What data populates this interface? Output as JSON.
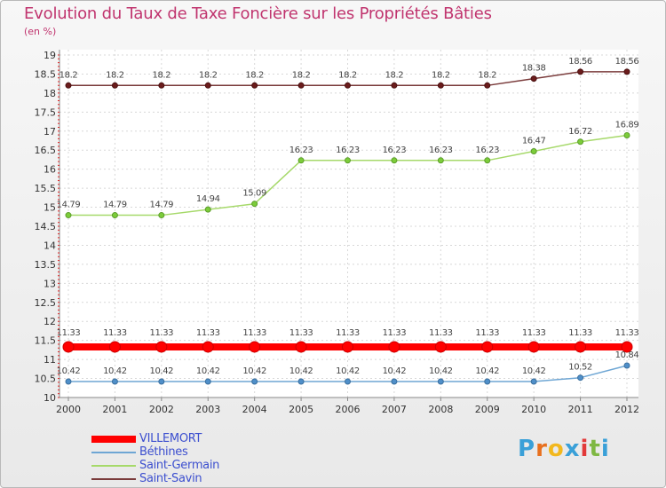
{
  "title": "Evolution du Taux de Taxe Foncière sur les Propriétés Bâties",
  "subtitle": "(en %)",
  "logo": {
    "letters": [
      "P",
      "r",
      "o",
      "x",
      "i",
      "t",
      "i"
    ],
    "colors": [
      "#3aa0d8",
      "#e8701e",
      "#f2b81e",
      "#3aa0d8",
      "#e23a3a",
      "#7fb843",
      "#3aa0d8"
    ]
  },
  "chart_data": {
    "type": "line",
    "title": "Evolution du Taux de Taxe Foncière sur les Propriétés Bâties",
    "ylabel": "(en %)",
    "xlabel": "",
    "x": [
      "2000",
      "2001",
      "2002",
      "2003",
      "2004",
      "2005",
      "2006",
      "2007",
      "2008",
      "2009",
      "2010",
      "2011",
      "2012"
    ],
    "ylim": [
      10,
      19
    ],
    "yticks": [
      "10",
      "10.5",
      "11",
      "11.5",
      "12",
      "12.5",
      "13",
      "13.5",
      "14",
      "14.5",
      "15",
      "15.5",
      "16",
      "16.5",
      "17",
      "17.5",
      "18",
      "18.5",
      "19"
    ],
    "legend_position": "bottom-left",
    "series": [
      {
        "name": "VILLEMORT",
        "color": "#ff0000",
        "values": [
          11.33,
          11.33,
          11.33,
          11.33,
          11.33,
          11.33,
          11.33,
          11.33,
          11.33,
          11.33,
          11.33,
          11.33,
          11.33
        ],
        "labels": [
          "11.33",
          "11.33",
          "11.33",
          "11.33",
          "11.33",
          "11.33",
          "11.33",
          "11.33",
          "11.33",
          "11.33",
          "11.33",
          "11.33",
          "11.33"
        ]
      },
      {
        "name": "Béthines",
        "color": "#6ea6d4",
        "values": [
          10.42,
          10.42,
          10.42,
          10.42,
          10.42,
          10.42,
          10.42,
          10.42,
          10.42,
          10.42,
          10.42,
          10.52,
          10.84
        ],
        "labels": [
          "10.42",
          "10.42",
          "10.42",
          "10.42",
          "10.42",
          "10.42",
          "10.42",
          "10.42",
          "10.42",
          "10.42",
          "10.42",
          "10.52",
          "10.84"
        ]
      },
      {
        "name": "Saint-Germain",
        "color": "#a6d96a",
        "values": [
          14.79,
          14.79,
          14.79,
          14.94,
          15.09,
          16.23,
          16.23,
          16.23,
          16.23,
          16.23,
          16.47,
          16.72,
          16.89
        ],
        "labels": [
          "14.79",
          "14.79",
          "14.79",
          "14.94",
          "15.09",
          "16.23",
          "16.23",
          "16.23",
          "16.23",
          "16.23",
          "16.47",
          "16.72",
          "16.89"
        ]
      },
      {
        "name": "Saint-Savin",
        "color": "#7a3b3b",
        "values": [
          18.2,
          18.2,
          18.2,
          18.2,
          18.2,
          18.2,
          18.2,
          18.2,
          18.2,
          18.2,
          18.38,
          18.56,
          18.56
        ],
        "labels": [
          "18.2",
          "18.2",
          "18.2",
          "18.2",
          "18.2",
          "18.2",
          "18.2",
          "18.2",
          "18.2",
          "18.2",
          "18.38",
          "18.56",
          "18.56"
        ]
      }
    ]
  }
}
